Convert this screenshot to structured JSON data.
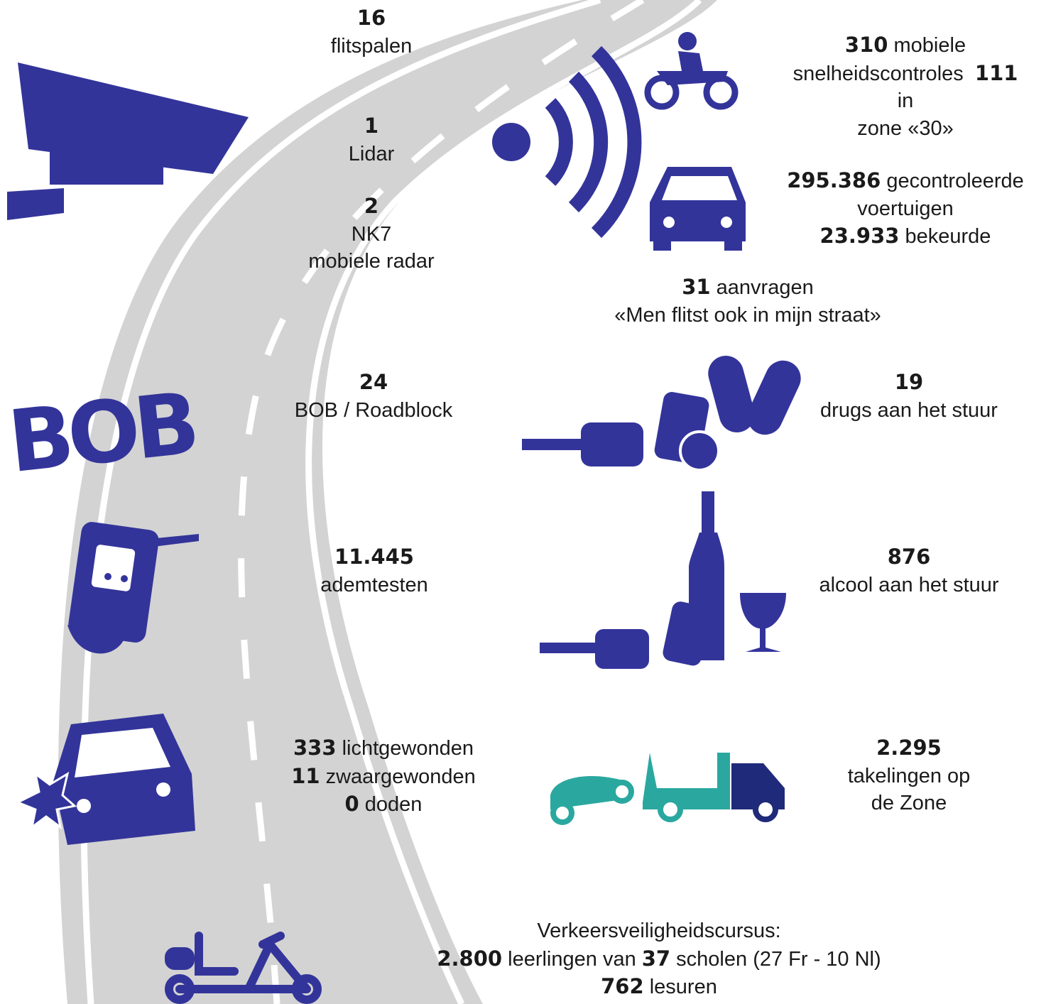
{
  "icon_text": "BOB",
  "blocks": [
    {
      "lines": [
        [
          {
            "text": "16",
            "bold": true
          }
        ],
        [
          {
            "text": "flitspalen",
            "bold": false
          }
        ]
      ]
    },
    {
      "lines": [
        [
          {
            "text": "1",
            "bold": true
          }
        ],
        [
          {
            "text": "Lidar",
            "bold": false
          }
        ]
      ]
    },
    {
      "lines": [
        [
          {
            "text": "2",
            "bold": true
          }
        ],
        [
          {
            "text": "NK7",
            "bold": false
          }
        ],
        [
          {
            "text": "mobiele radar",
            "bold": false
          }
        ]
      ]
    },
    {
      "lines": [
        [
          {
            "text": "310",
            "bold": true
          },
          {
            "text": " mobiele",
            "bold": false
          }
        ],
        [
          {
            "text": "snelheidscontroles  ",
            "bold": false
          },
          {
            "text": "111",
            "bold": true
          }
        ],
        [
          {
            "text": "in",
            "bold": false
          }
        ],
        [
          {
            "text": "zone «30»",
            "bold": false
          }
        ]
      ]
    },
    {
      "lines": [
        [
          {
            "text": "295.386",
            "bold": true
          },
          {
            "text": " gecontroleerde",
            "bold": false
          }
        ],
        [
          {
            "text": "voertuigen",
            "bold": false
          }
        ],
        [
          {
            "text": "23.933",
            "bold": true
          },
          {
            "text": " bekeurde",
            "bold": false
          }
        ]
      ]
    },
    {
      "lines": [
        [
          {
            "text": "31",
            "bold": true
          },
          {
            "text": " aanvragen",
            "bold": false
          }
        ],
        [
          {
            "text": "«Men flitst ook in mijn straat»",
            "bold": false
          }
        ]
      ]
    },
    {
      "lines": [
        [
          {
            "text": "24",
            "bold": true
          }
        ],
        [
          {
            "text": "BOB / Roadblock",
            "bold": false
          }
        ]
      ]
    },
    {
      "lines": [
        [
          {
            "text": "19",
            "bold": true
          }
        ],
        [
          {
            "text": "drugs aan het stuur",
            "bold": false
          }
        ]
      ]
    },
    {
      "lines": [
        [
          {
            "text": "11.445",
            "bold": true
          }
        ],
        [
          {
            "text": "ademtesten",
            "bold": false
          }
        ]
      ]
    },
    {
      "lines": [
        [
          {
            "text": "876",
            "bold": true
          }
        ],
        [
          {
            "text": "alcool aan het stuur",
            "bold": false
          }
        ]
      ]
    },
    {
      "lines": [
        [
          {
            "text": "333",
            "bold": true
          },
          {
            "text": " lichtgewonden",
            "bold": false
          }
        ],
        [
          {
            "text": "11",
            "bold": true
          },
          {
            "text": " zwaargewonden",
            "bold": false
          }
        ],
        [
          {
            "text": "0",
            "bold": true
          },
          {
            "text": " doden",
            "bold": false
          }
        ]
      ]
    },
    {
      "lines": [
        [
          {
            "text": "2.295",
            "bold": true
          }
        ],
        [
          {
            "text": "takelingen op",
            "bold": false
          }
        ],
        [
          {
            "text": "de Zone",
            "bold": false
          }
        ]
      ]
    },
    {
      "lines": [
        [
          {
            "text": "Verkeersveiligheidscursus:",
            "bold": false
          }
        ],
        [
          {
            "text": "2.800",
            "bold": true
          },
          {
            "text": " leerlingen van ",
            "bold": false
          },
          {
            "text": "37",
            "bold": true
          },
          {
            "text": " scholen (27 Fr - 10 Nl)",
            "bold": false
          }
        ],
        [
          {
            "text": "762",
            "bold": true
          },
          {
            "text": " lesuren",
            "bold": false
          }
        ]
      ]
    }
  ]
}
